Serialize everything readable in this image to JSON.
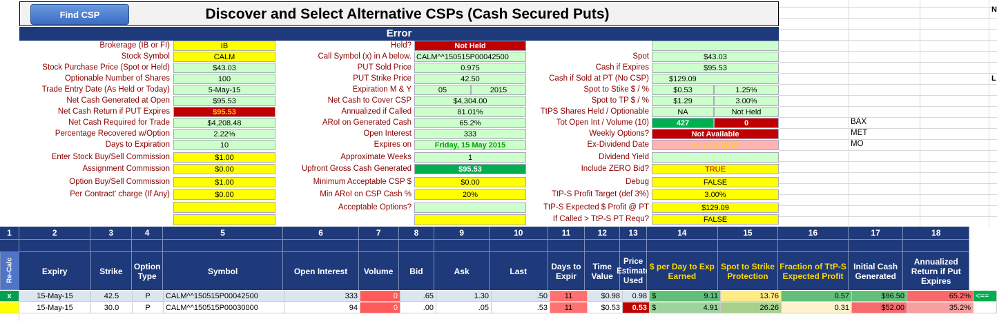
{
  "toolbar": {
    "find_csp": "Find CSP"
  },
  "title": "Discover and Select Alternative CSPs (Cash Secured Puts)",
  "status": "Error",
  "left_labels": [
    "Brokerage (IB or FI)",
    "Stock Symbol",
    "Stock Purchase Price (Spot or Held)",
    "Optionable Number of Shares",
    "Trade Entry Date (As Held or Today)",
    "Net Cash Generated at Open",
    "Net Cash Return if PUT Expires",
    "Net Cash Required for Trade",
    "Percentage Recovered w/Option",
    "Days to Expiration",
    "Enter Stock Buy/Sell Commission",
    "Assignment Commission",
    "Option Buy/Sell Commission",
    "Per Contract' charge (If Any)"
  ],
  "left_values": [
    "IB",
    "CALM",
    "$43.03",
    "100",
    "5-May-15",
    "$95.53",
    "$95.53",
    "$4,208.48",
    "2.22%",
    "10",
    "$1.00",
    "$0.00",
    "$1.00",
    "$0.00"
  ],
  "mid_labels": [
    "Held?",
    "Call Symbol  (x) in A below.",
    "PUT Sold Price",
    "PUT Strike Price",
    "Expiration M & Y",
    "Net Cash to Cover CSP",
    "Annualized if Called",
    "ARoI on Generated Cash",
    "Open Interest",
    "Expires on",
    "Approximate Weeks",
    "Upfront Gross Cash Generated",
    "Minimum Acceptable CSP $",
    "Min ARoI on CSP Cash %",
    "Acceptable Options?"
  ],
  "mid_values": [
    "Not Held",
    "CALM^^150515P00042500",
    "0.975",
    "42.50",
    "05|2015",
    "$4,304.00",
    "81.01%",
    "65.2%",
    "333",
    "Friday, 15 May 2015",
    "1",
    "$95.53",
    "$0.00",
    "20%",
    ""
  ],
  "right_labels": [
    "",
    "Spot",
    "Cash if Expires",
    "Cash if Sold at PT (No CSP)",
    "Spot to Stike $ / %",
    "Spot to TP $ / %",
    "TtPS Shares Held / Optionable",
    "Tot Open Int / Volume (10)",
    "Weekly Options?",
    "Ex-Dividend Date",
    "Dividend Yield",
    "Include ZERO Bid?",
    "Debug",
    "TtP-S Profit Target (def 3%)",
    "TtP-S Expected $ Profit @ PT",
    "If Called > TtP-S PT Requ?"
  ],
  "right_values": [
    "",
    "$43.03",
    "$95.53",
    "$129.09",
    "$0.53|1.25%",
    "$1.29|3.00%",
    "NA|Not Held",
    "427|0",
    "Not Available",
    "May 14, 2015",
    "",
    "TRUE",
    "FALSE",
    "3.00%",
    "$129.09",
    "FALSE"
  ],
  "side_list": [
    "BAX",
    "MET",
    "MO"
  ],
  "col_numbers": [
    "1",
    "2",
    "3",
    "4",
    "5",
    "6",
    "7",
    "8",
    "9",
    "10",
    "11",
    "12",
    "13",
    "14",
    "15",
    "16",
    "17",
    "18"
  ],
  "table_headers": [
    "Re-Calc",
    "Expiry",
    "Strike",
    "Option Type",
    "Symbol",
    "Open Interest",
    "Volume",
    "Bid",
    "Ask",
    "Last",
    "Days to Expir",
    "Time Value",
    "Price Estimate Used",
    "$ per Day to Exp Earned",
    "Spot to Strike Protection",
    "Fraction of TtP-S Expected Profit",
    "Initial Cash Generated",
    "Annualized Return if Put Expires"
  ],
  "rows": [
    {
      "sel": "x",
      "expiry": "15-May-15",
      "strike": "42.5",
      "type": "P",
      "symbol": "CALM^^150515P00042500",
      "oi": "333",
      "vol": "0",
      "bid": ".65",
      "ask": "1.30",
      "last": ".50",
      "days": "11",
      "tv": "$0.98",
      "pe": "0.98",
      "ppd_sym": "$",
      "ppd": "9.11",
      "sts": "13.76",
      "frac": "0.57",
      "icg": "$96.50",
      "ann": "65.2%",
      "arrow": "<=="
    },
    {
      "sel": "",
      "expiry": "15-May-15",
      "strike": "30.0",
      "type": "P",
      "symbol": "CALM^^150515P00030000",
      "oi": "94",
      "vol": "0",
      "bid": ".00",
      "ask": ".05",
      "last": ".53",
      "days": "11",
      "tv": "$0.53",
      "pe": "0.53",
      "ppd_sym": "$",
      "ppd": "4.91",
      "sts": "26.26",
      "frac": "0.31",
      "icg": "$52.00",
      "ann": "35.2%",
      "arrow": ""
    }
  ],
  "colors": {
    "navy": "#1f3a7a",
    "label_red": "#8b0000",
    "green_cell": "#ccffcc",
    "yellow": "#ffff00",
    "red": "#c00000",
    "dark_green": "#00b050"
  }
}
